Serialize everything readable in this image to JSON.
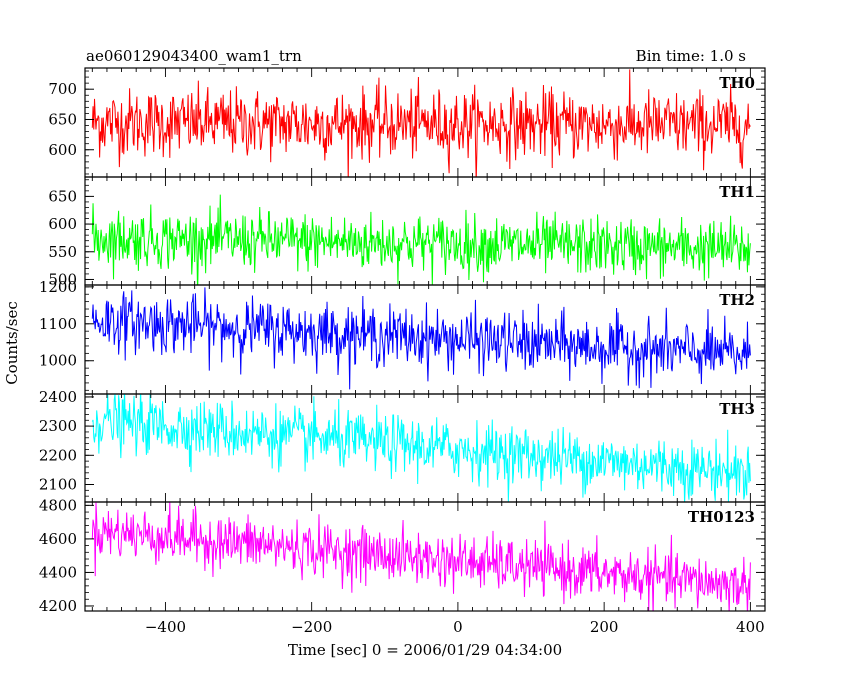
{
  "header": {
    "title": "ae060129043400_wam1_trn",
    "bin_time": "Bin time: 1.0 s"
  },
  "chart_data": {
    "type": "line",
    "title": "ae060129043400_wam1_trn",
    "xlabel": "Time [sec] 0 = 2006/01/29 04:34:00",
    "ylabel": "Counts/sec",
    "xlim": [
      -510,
      420
    ],
    "x_ticks": [
      -400,
      -200,
      0,
      200,
      400
    ],
    "x_tick_labels": [
      "−400",
      "−200",
      "0",
      "200",
      "400"
    ],
    "x_range": [
      -500,
      400
    ],
    "bin_time_s": 1.0,
    "grid": false,
    "panels": [
      {
        "name": "TH0",
        "color": "#ff0000",
        "ylim": [
          555,
          735
        ],
        "y_ticks": [
          600,
          650,
          700
        ],
        "trend_start": 645,
        "trend_end": 640,
        "noise_sigma": 28
      },
      {
        "name": "TH1",
        "color": "#00ff00",
        "ylim": [
          490,
          685
        ],
        "y_ticks": [
          500,
          550,
          600,
          650
        ],
        "trend_start": 575,
        "trend_end": 555,
        "noise_sigma": 26
      },
      {
        "name": "TH2",
        "color": "#0000ff",
        "ylim": [
          910,
          1205
        ],
        "y_ticks": [
          1000,
          1100,
          1200
        ],
        "trend_start": 1110,
        "trend_end": 1015,
        "noise_sigma": 40
      },
      {
        "name": "TH3",
        "color": "#00ffff",
        "ylim": [
          2040,
          2410
        ],
        "y_ticks": [
          2100,
          2200,
          2300,
          2400
        ],
        "trend_start": 2320,
        "trend_end": 2140,
        "noise_sigma": 50
      },
      {
        "name": "TH0123",
        "color": "#ff00ff",
        "ylim": [
          4170,
          4820
        ],
        "y_ticks": [
          4200,
          4400,
          4600,
          4800
        ],
        "trend_start": 4650,
        "trend_end": 4320,
        "noise_sigma": 80
      }
    ]
  }
}
